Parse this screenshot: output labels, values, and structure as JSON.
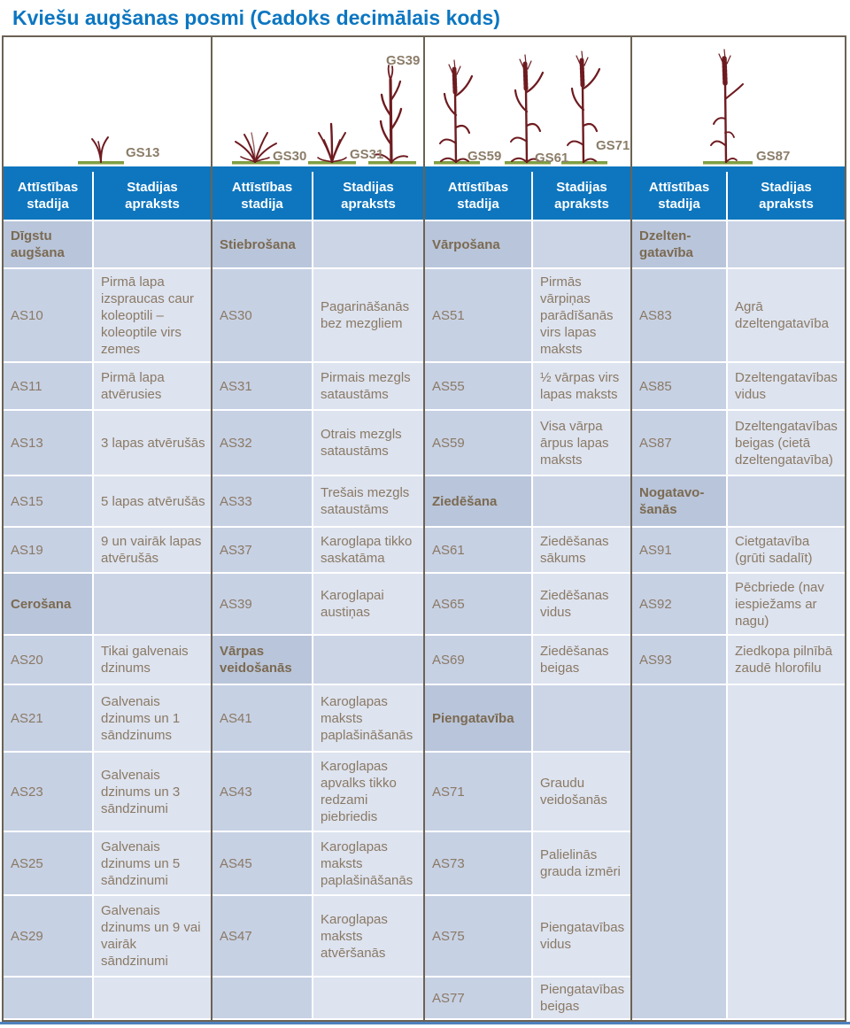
{
  "title": "Kviešu augšanas posmi (Cadoks decimālais kods)",
  "header": {
    "stage_label": "Attīstības stadija",
    "desc_label": "Stadijas apraksts"
  },
  "colors": {
    "title_blue": "#0b76c1",
    "header_blue": "#0e76bf",
    "section_bg_stage": "#b9c5da",
    "section_bg_desc": "#ccd5e6",
    "data_bg_stage": "#c7d1e4",
    "data_bg_desc": "#dde3ef",
    "text_brown": "#8a7965",
    "border_brown": "#6b6255",
    "plant_maroon": "#6e1b20",
    "ground_green": "#7f9e42",
    "bottom_accent": "#4f81bd"
  },
  "groups": [
    {
      "illustration": {
        "labels": [
          "GS13"
        ]
      },
      "rows": [
        {
          "type": "section",
          "stage": "Dīgstu augšana",
          "desc": ""
        },
        {
          "type": "data",
          "stage": "AS10",
          "desc": "Pirmā lapa izspraucas caur koleoptili – koleoptile virs zemes"
        },
        {
          "type": "data",
          "stage": "AS11",
          "desc": "Pirmā lapa atvērusies"
        },
        {
          "type": "data",
          "stage": "AS13",
          "desc": "3 lapas atvērušās"
        },
        {
          "type": "data",
          "stage": "AS15",
          "desc": "5 lapas atvērušās"
        },
        {
          "type": "data",
          "stage": "AS19",
          "desc": "9 un vairāk lapas atvērušās"
        },
        {
          "type": "section",
          "stage": "Cerošana",
          "desc": ""
        },
        {
          "type": "data",
          "stage": "AS20",
          "desc": "Tikai galvenais dzinums"
        },
        {
          "type": "data",
          "stage": "AS21",
          "desc": "Galvenais dzinums un 1 sāndzinums"
        },
        {
          "type": "data",
          "stage": "AS23",
          "desc": "Galvenais dzinums un 3 sāndzinumi"
        },
        {
          "type": "data",
          "stage": "AS25",
          "desc": "Galvenais dzinums un 5 sāndzinumi"
        },
        {
          "type": "data",
          "stage": "AS29",
          "desc": "Galvenais dzinums un 9 vai vairāk sāndzinumi"
        },
        {
          "type": "empty",
          "stage": "",
          "desc": ""
        }
      ]
    },
    {
      "illustration": {
        "labels": [
          "GS30",
          "GS31",
          "GS39"
        ]
      },
      "rows": [
        {
          "type": "section",
          "stage": "Stiebrošana",
          "desc": ""
        },
        {
          "type": "data",
          "stage": "AS30",
          "desc": "Pagarināšanās bez mezgliem"
        },
        {
          "type": "data",
          "stage": "AS31",
          "desc": "Pirmais mezgls sataustāms"
        },
        {
          "type": "data",
          "stage": "AS32",
          "desc": "Otrais mezgls sataustāms"
        },
        {
          "type": "data",
          "stage": "AS33",
          "desc": "Trešais mezgls sataustāms"
        },
        {
          "type": "data",
          "stage": "AS37",
          "desc": "Karoglapa tikko saskatāma"
        },
        {
          "type": "data",
          "stage": "AS39",
          "desc": "Karoglapai austiņas"
        },
        {
          "type": "section",
          "stage": "Vārpas veidošanās",
          "desc": ""
        },
        {
          "type": "data",
          "stage": "AS41",
          "desc": "Karoglapas maksts paplašināšanās"
        },
        {
          "type": "data",
          "stage": "AS43",
          "desc": "Karoglapas apvalks tikko redzami piebriedis"
        },
        {
          "type": "data",
          "stage": "AS45",
          "desc": "Karoglapas maksts paplašināšanās"
        },
        {
          "type": "data",
          "stage": "AS47",
          "desc": "Karoglapas maksts atvēršanās"
        },
        {
          "type": "empty",
          "stage": "",
          "desc": ""
        }
      ]
    },
    {
      "illustration": {
        "labels": [
          "GS59",
          "GS61",
          "GS71"
        ]
      },
      "rows": [
        {
          "type": "section",
          "stage": "Vārpošana",
          "desc": ""
        },
        {
          "type": "data",
          "stage": "AS51",
          "desc": "Pirmās vārpiņas parādīšanās virs lapas maksts"
        },
        {
          "type": "data",
          "stage": "AS55",
          "desc": "½ vārpas virs lapas maksts"
        },
        {
          "type": "data",
          "stage": "AS59",
          "desc": "Visa vārpa ārpus lapas maksts"
        },
        {
          "type": "section",
          "stage": "Ziedēšana",
          "desc": ""
        },
        {
          "type": "data",
          "stage": "AS61",
          "desc": "Ziedēšanas sākums"
        },
        {
          "type": "data",
          "stage": "AS65",
          "desc": "Ziedēšanas vidus"
        },
        {
          "type": "data",
          "stage": "AS69",
          "desc": "Ziedēšanas beigas"
        },
        {
          "type": "section",
          "stage": "Piengatavība",
          "desc": ""
        },
        {
          "type": "data",
          "stage": "AS71",
          "desc": "Graudu veidošanās"
        },
        {
          "type": "data",
          "stage": "AS73",
          "desc": "Palielinās grauda izmēri"
        },
        {
          "type": "data",
          "stage": "AS75",
          "desc": "Piengatavības vidus"
        },
        {
          "type": "data",
          "stage": "AS77",
          "desc": "Piengatavības beigas"
        }
      ]
    },
    {
      "illustration": {
        "labels": [
          "GS87"
        ]
      },
      "rows": [
        {
          "type": "section",
          "stage": "Dzelten-gatavība",
          "desc": ""
        },
        {
          "type": "data",
          "stage": "AS83",
          "desc": "Agrā dzeltengatavība"
        },
        {
          "type": "data",
          "stage": "AS85",
          "desc": "Dzeltengatavības vidus"
        },
        {
          "type": "data",
          "stage": "AS87",
          "desc": "Dzeltengatavības beigas (cietā dzeltengatavība)"
        },
        {
          "type": "section",
          "stage": "Nogatavo-šanās",
          "desc": ""
        },
        {
          "type": "data",
          "stage": "AS91",
          "desc": "Cietgatavība (grūti sadalīt)"
        },
        {
          "type": "data",
          "stage": "AS92",
          "desc": "Pēcbriede (nav iespiežams ar nagu)"
        },
        {
          "type": "data",
          "stage": "AS93",
          "desc": "Ziedkopa pilnībā zaudē hlorofilu"
        },
        {
          "type": "empty",
          "stage": "",
          "desc": ""
        },
        {
          "type": "empty",
          "stage": "",
          "desc": ""
        },
        {
          "type": "empty",
          "stage": "",
          "desc": ""
        },
        {
          "type": "empty",
          "stage": "",
          "desc": ""
        },
        {
          "type": "empty",
          "stage": "",
          "desc": ""
        }
      ]
    }
  ]
}
